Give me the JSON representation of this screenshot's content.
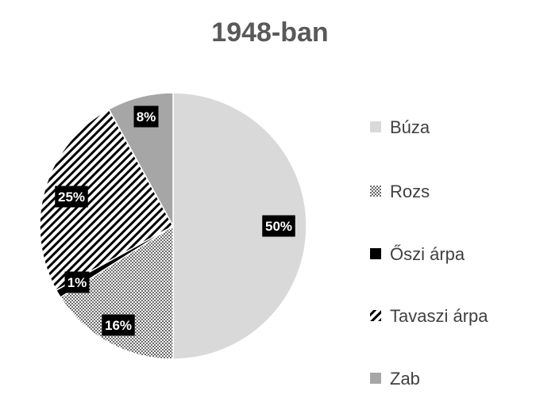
{
  "chart_data": {
    "type": "pie",
    "title": "1948-ban",
    "categories": [
      "Búza",
      "Rozs",
      "Őszi árpa",
      "Tavaszi árpa",
      "Zab"
    ],
    "values": [
      50,
      16,
      1,
      25,
      8
    ],
    "data_labels": [
      "50%",
      "16%",
      "1%",
      "25%",
      "8%"
    ],
    "legend_position": "right",
    "fills": [
      "#d9d9d9",
      "dots-pattern",
      "#000000",
      "diagonal-stripes-pattern",
      "#a6a6a6"
    ]
  }
}
